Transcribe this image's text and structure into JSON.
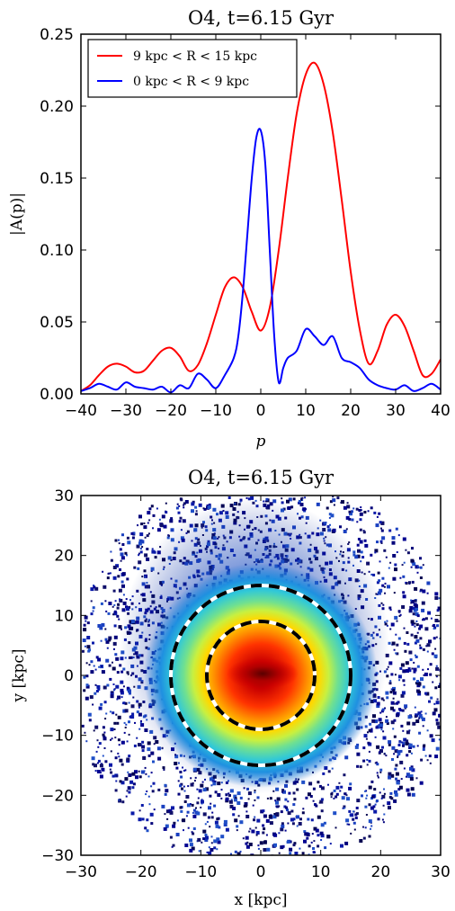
{
  "chart_data": [
    {
      "type": "line",
      "title": "O4, t=6.15 Gyr",
      "xlabel": "p",
      "ylabel": "|A(p)|",
      "xlim": [
        -40,
        40
      ],
      "ylim": [
        0,
        0.25
      ],
      "xticks": [
        "−40",
        "−30",
        "−20",
        "−10",
        "0",
        "10",
        "20",
        "30",
        "40"
      ],
      "yticks": [
        "0.00",
        "0.05",
        "0.10",
        "0.15",
        "0.20",
        "0.25"
      ],
      "legend_position": "top-left",
      "series": [
        {
          "name": "9 kpc < R < 15 kpc",
          "color": "#ff0000",
          "x": [
            -40,
            -38,
            -36,
            -34,
            -32,
            -30,
            -28,
            -26,
            -24,
            -22,
            -20,
            -18,
            -16,
            -14,
            -12,
            -10,
            -8,
            -6,
            -4,
            -2,
            0,
            2,
            4,
            6,
            8,
            10,
            12,
            14,
            16,
            18,
            20,
            22,
            24,
            26,
            28,
            30,
            32,
            34,
            36,
            38,
            40
          ],
          "values": [
            0.002,
            0.006,
            0.013,
            0.019,
            0.021,
            0.019,
            0.015,
            0.016,
            0.023,
            0.03,
            0.032,
            0.026,
            0.016,
            0.02,
            0.035,
            0.055,
            0.074,
            0.081,
            0.074,
            0.057,
            0.044,
            0.06,
            0.1,
            0.15,
            0.195,
            0.222,
            0.23,
            0.215,
            0.182,
            0.135,
            0.085,
            0.045,
            0.021,
            0.03,
            0.048,
            0.055,
            0.047,
            0.03,
            0.013,
            0.014,
            0.024
          ]
        },
        {
          "name": "0 kpc < R < 9 kpc",
          "color": "#0000ff",
          "x": [
            -40,
            -38,
            -36,
            -34,
            -32,
            -30,
            -28,
            -26,
            -24,
            -22,
            -20,
            -18,
            -16,
            -14,
            -12,
            -10,
            -8,
            -6,
            -5,
            -4,
            -3,
            -2,
            -1,
            0,
            1,
            2,
            3,
            4,
            5,
            6,
            8,
            10,
            12,
            14,
            16,
            18,
            20,
            22,
            24,
            26,
            28,
            30,
            32,
            34,
            36,
            38,
            40
          ],
          "values": [
            0.002,
            0.004,
            0.007,
            0.005,
            0.003,
            0.008,
            0.005,
            0.004,
            0.003,
            0.005,
            0.001,
            0.006,
            0.004,
            0.014,
            0.01,
            0.004,
            0.013,
            0.025,
            0.04,
            0.07,
            0.11,
            0.15,
            0.178,
            0.183,
            0.16,
            0.1,
            0.04,
            0.008,
            0.018,
            0.025,
            0.03,
            0.045,
            0.04,
            0.034,
            0.04,
            0.025,
            0.022,
            0.018,
            0.01,
            0.006,
            0.004,
            0.003,
            0.006,
            0.002,
            0.004,
            0.007,
            0.003
          ]
        }
      ]
    },
    {
      "type": "heatmap",
      "title": "O4, t=6.15 Gyr",
      "xlabel": "x [kpc]",
      "ylabel": "y [kpc]",
      "xlim": [
        -30,
        30
      ],
      "ylim": [
        -30,
        30
      ],
      "xticks": [
        "−30",
        "−20",
        "−10",
        "0",
        "10",
        "20",
        "30"
      ],
      "yticks": [
        "−30",
        "−20",
        "−10",
        "0",
        "10",
        "20",
        "30"
      ],
      "colormap": "jet",
      "annotations": [
        {
          "shape": "dashed circle",
          "radius": 9,
          "color": "#000000",
          "alt_color": "#ffffff"
        },
        {
          "shape": "dashed circle",
          "radius": 15,
          "color": "#000000",
          "alt_color": "#ffffff"
        }
      ]
    }
  ]
}
